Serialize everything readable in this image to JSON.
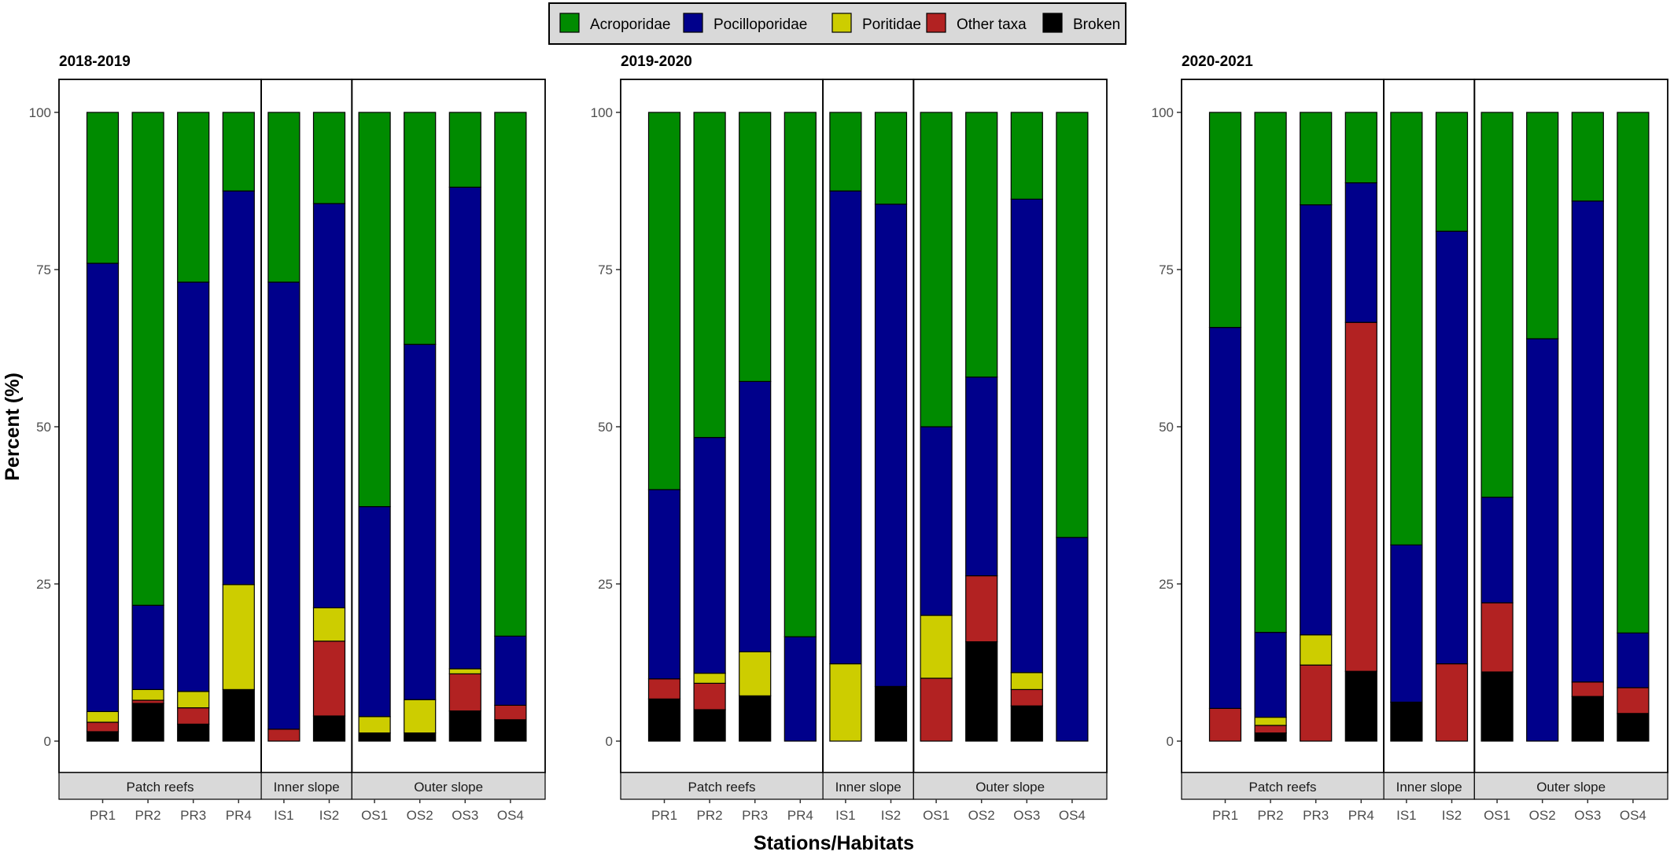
{
  "chart_data": {
    "type": "bar",
    "stacked": true,
    "ylabel": "Percent (%)",
    "xlabel": "Stations/Habitats",
    "ylim": [
      0,
      100
    ],
    "yticks": [
      0,
      25,
      50,
      75,
      100
    ],
    "legend": {
      "placement": "top-center",
      "entries": [
        {
          "name": "Acroporidae",
          "color": "#008B00"
        },
        {
          "name": "Pocilloporidae",
          "color": "#00008B"
        },
        {
          "name": "Poritidae",
          "color": "#CDCD00"
        },
        {
          "name": "Other taxa",
          "color": "#B22222"
        },
        {
          "name": "Broken",
          "color": "#000000"
        }
      ]
    },
    "stack_order": [
      "Broken",
      "Other taxa",
      "Poritidae",
      "Pocilloporidae",
      "Acroporidae"
    ],
    "habitats": [
      {
        "name": "Patch reefs",
        "stations": [
          "PR1",
          "PR2",
          "PR3",
          "PR4"
        ]
      },
      {
        "name": "Inner slope",
        "stations": [
          "IS1",
          "IS2"
        ]
      },
      {
        "name": "Outer slope",
        "stations": [
          "OS1",
          "OS2",
          "OS3",
          "OS4"
        ]
      }
    ],
    "panels": [
      {
        "title": "2018-2019",
        "stations": [
          {
            "station": "PR1",
            "Broken": 1.5,
            "Other taxa": 1.5,
            "Poritidae": 1.7,
            "Pocilloporidae": 71.3,
            "Acroporidae": 24.0
          },
          {
            "station": "PR2",
            "Broken": 6.0,
            "Other taxa": 0.5,
            "Poritidae": 1.7,
            "Pocilloporidae": 13.4,
            "Acroporidae": 78.4
          },
          {
            "station": "PR3",
            "Broken": 2.7,
            "Other taxa": 2.6,
            "Poritidae": 2.6,
            "Pocilloporidae": 65.1,
            "Acroporidae": 27.0
          },
          {
            "station": "PR4",
            "Broken": 8.2,
            "Other taxa": 0,
            "Poritidae": 16.7,
            "Pocilloporidae": 62.6,
            "Acroporidae": 12.5
          },
          {
            "station": "IS1",
            "Broken": 0,
            "Other taxa": 1.9,
            "Poritidae": 0,
            "Pocilloporidae": 71.1,
            "Acroporidae": 27.0
          },
          {
            "station": "IS2",
            "Broken": 4.0,
            "Other taxa": 11.9,
            "Poritidae": 5.3,
            "Pocilloporidae": 64.3,
            "Acroporidae": 14.5
          },
          {
            "station": "OS1",
            "Broken": 1.3,
            "Other taxa": 0,
            "Poritidae": 2.6,
            "Pocilloporidae": 33.4,
            "Acroporidae": 62.7
          },
          {
            "station": "OS2",
            "Broken": 1.3,
            "Other taxa": 0,
            "Poritidae": 5.3,
            "Pocilloporidae": 56.5,
            "Acroporidae": 36.9
          },
          {
            "station": "OS3",
            "Broken": 4.8,
            "Other taxa": 5.9,
            "Poritidae": 0.8,
            "Pocilloporidae": 76.6,
            "Acroporidae": 11.9
          },
          {
            "station": "OS4",
            "Broken": 3.4,
            "Other taxa": 2.3,
            "Poritidae": 0,
            "Pocilloporidae": 11.0,
            "Acroporidae": 83.3
          }
        ]
      },
      {
        "title": "2019-2020",
        "stations": [
          {
            "station": "PR1",
            "Broken": 6.7,
            "Other taxa": 3.2,
            "Poritidae": 0,
            "Pocilloporidae": 30.1,
            "Acroporidae": 60.0
          },
          {
            "station": "PR2",
            "Broken": 5.0,
            "Other taxa": 4.2,
            "Poritidae": 1.6,
            "Pocilloporidae": 37.5,
            "Acroporidae": 51.7
          },
          {
            "station": "PR3",
            "Broken": 7.2,
            "Other taxa": 0,
            "Poritidae": 7.0,
            "Pocilloporidae": 43.0,
            "Acroporidae": 42.8
          },
          {
            "station": "PR4",
            "Broken": 0,
            "Other taxa": 0,
            "Poritidae": 0,
            "Pocilloporidae": 16.6,
            "Acroporidae": 83.4
          },
          {
            "station": "IS1",
            "Broken": 0,
            "Other taxa": 0,
            "Poritidae": 12.3,
            "Pocilloporidae": 75.2,
            "Acroporidae": 12.5
          },
          {
            "station": "IS2",
            "Broken": 8.7,
            "Other taxa": 0,
            "Poritidae": 0,
            "Pocilloporidae": 76.7,
            "Acroporidae": 14.6
          },
          {
            "station": "OS1",
            "Broken": 0,
            "Other taxa": 10.0,
            "Poritidae": 10.0,
            "Pocilloporidae": 30.0,
            "Acroporidae": 50.0
          },
          {
            "station": "OS2",
            "Broken": 15.8,
            "Other taxa": 10.5,
            "Poritidae": 0,
            "Pocilloporidae": 31.6,
            "Acroporidae": 42.1
          },
          {
            "station": "OS3",
            "Broken": 5.6,
            "Other taxa": 2.6,
            "Poritidae": 2.7,
            "Pocilloporidae": 75.3,
            "Acroporidae": 13.8
          },
          {
            "station": "OS4",
            "Broken": 0,
            "Other taxa": 0,
            "Poritidae": 0,
            "Pocilloporidae": 32.4,
            "Acroporidae": 67.6
          }
        ]
      },
      {
        "title": "2020-2021",
        "stations": [
          {
            "station": "PR1",
            "Broken": 0,
            "Other taxa": 5.2,
            "Poritidae": 0,
            "Pocilloporidae": 60.6,
            "Acroporidae": 34.2
          },
          {
            "station": "PR2",
            "Broken": 1.3,
            "Other taxa": 1.2,
            "Poritidae": 1.3,
            "Pocilloporidae": 13.5,
            "Acroporidae": 82.7
          },
          {
            "station": "PR3",
            "Broken": 0,
            "Other taxa": 12.1,
            "Poritidae": 4.8,
            "Pocilloporidae": 68.4,
            "Acroporidae": 14.7
          },
          {
            "station": "PR4",
            "Broken": 11.1,
            "Other taxa": 55.5,
            "Poritidae": 0,
            "Pocilloporidae": 22.2,
            "Acroporidae": 11.2
          },
          {
            "station": "IS1",
            "Broken": 6.2,
            "Other taxa": 0,
            "Poritidae": 0,
            "Pocilloporidae": 25.0,
            "Acroporidae": 68.8
          },
          {
            "station": "IS2",
            "Broken": 0,
            "Other taxa": 12.3,
            "Poritidae": 0,
            "Pocilloporidae": 68.8,
            "Acroporidae": 18.9
          },
          {
            "station": "OS1",
            "Broken": 11.0,
            "Other taxa": 11.0,
            "Poritidae": 0,
            "Pocilloporidae": 16.8,
            "Acroporidae": 61.2
          },
          {
            "station": "OS2",
            "Broken": 0,
            "Other taxa": 0,
            "Poritidae": 0,
            "Pocilloporidae": 64.0,
            "Acroporidae": 36.0
          },
          {
            "station": "OS3",
            "Broken": 7.1,
            "Other taxa": 2.3,
            "Poritidae": 0,
            "Pocilloporidae": 76.5,
            "Acroporidae": 14.1
          },
          {
            "station": "OS4",
            "Broken": 4.4,
            "Other taxa": 4.1,
            "Poritidae": 0,
            "Pocilloporidae": 8.7,
            "Acroporidae": 82.8
          }
        ]
      }
    ]
  }
}
